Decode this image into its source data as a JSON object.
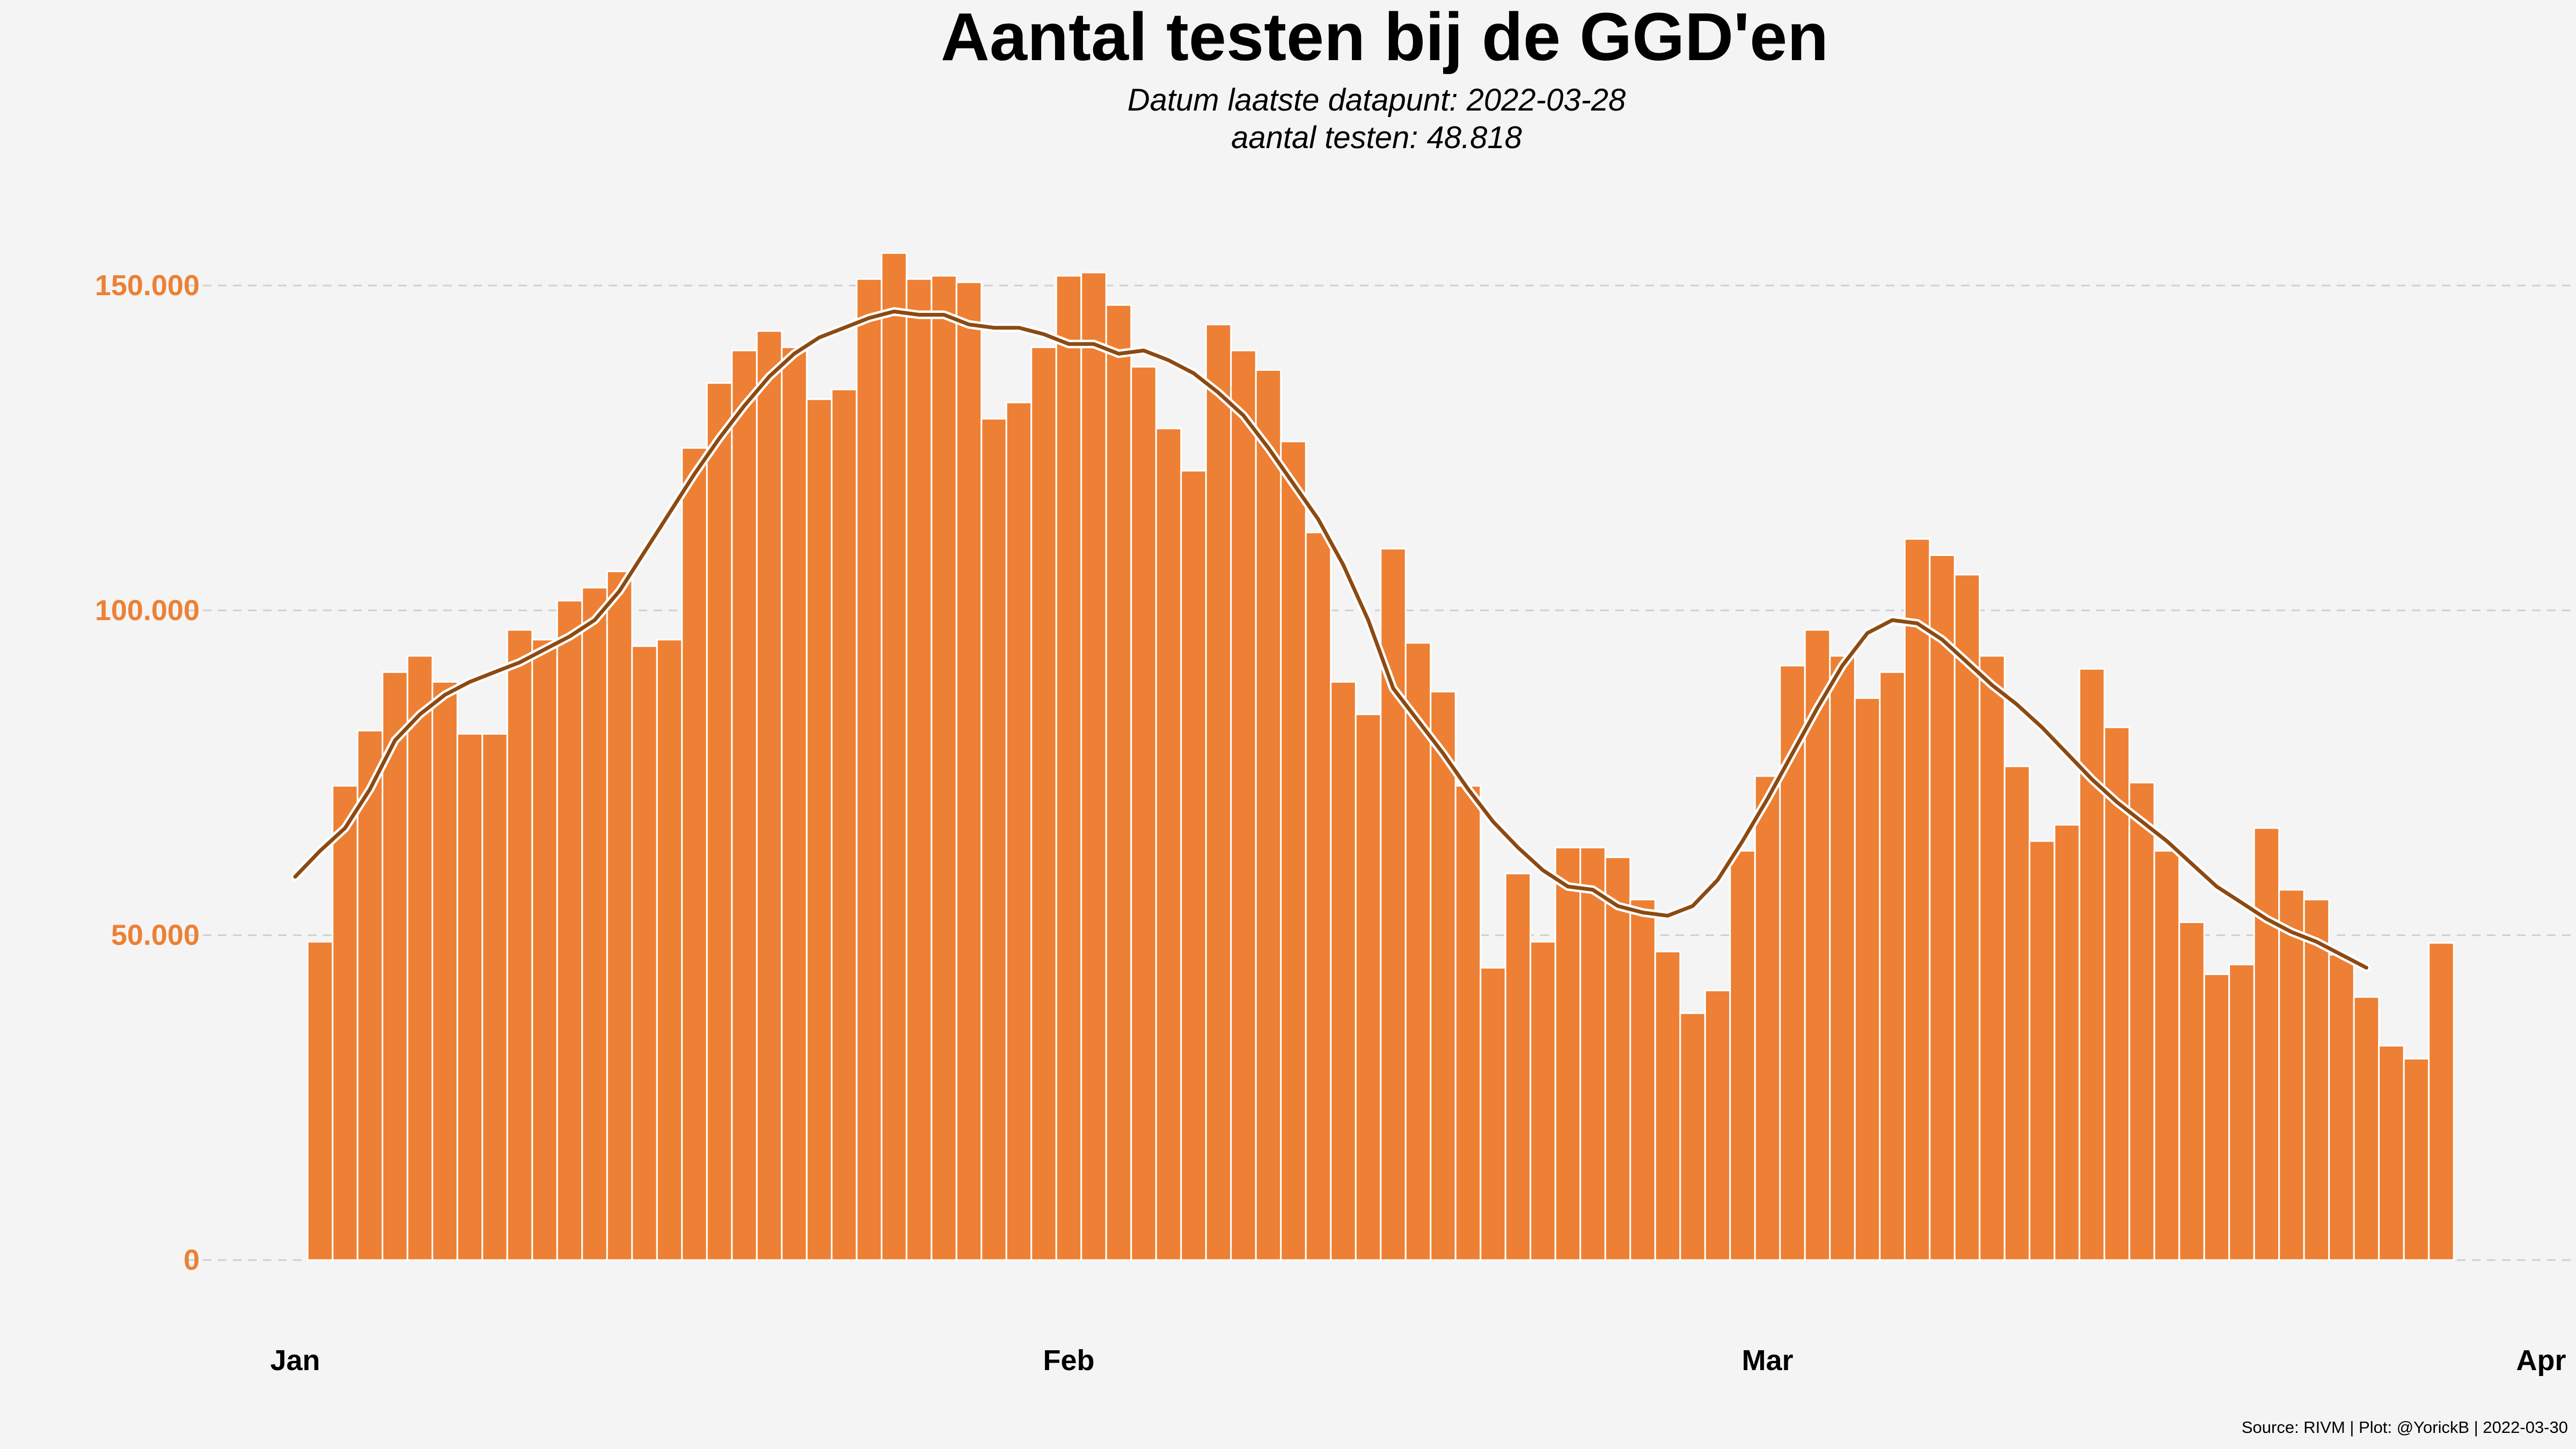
{
  "colors": {
    "background": "#f4f4f4",
    "bar": "#ed8034",
    "bar_stroke": "#ffffff",
    "trend": "#8c4a12",
    "trend_halo": "#ffffff",
    "ytick": "#ed8034",
    "grid": "#cfcfcf"
  },
  "chart_data": {
    "type": "bar",
    "title": "Aantal testen bij de GGD'en",
    "subtitle_line1": "Datum laatste datapunt: 2022-03-28",
    "subtitle_line2": "aantal testen: 48.818",
    "caption": "Source: RIVM | Plot: @YorickB |  2022-03-30",
    "xlabel": "",
    "ylabel": "",
    "x_start": "2022-01-01",
    "x_end": "2022-04-01",
    "ylim": [
      -3500,
      165000
    ],
    "grid": "horizontal dashed",
    "legend": "none",
    "y_ticks": [
      {
        "value": 0,
        "label": "0"
      },
      {
        "value": 50000,
        "label": "50.000"
      },
      {
        "value": 100000,
        "label": "100.000"
      },
      {
        "value": 150000,
        "label": "150.000"
      }
    ],
    "x_ticks": [
      {
        "date": "2022-01-01",
        "label": "Jan"
      },
      {
        "date": "2022-02-01",
        "label": "Feb"
      },
      {
        "date": "2022-03-01",
        "label": "Mar"
      },
      {
        "date": "2022-04-01",
        "label": "Apr"
      }
    ],
    "bars": {
      "name": "aantal testen",
      "first_date": "2022-01-02",
      "last_date": "2022-03-28",
      "values": [
        49000,
        73000,
        81500,
        90500,
        93000,
        89000,
        81000,
        81000,
        97000,
        95500,
        101500,
        103500,
        106000,
        94500,
        95500,
        125000,
        135000,
        140000,
        143000,
        140500,
        132500,
        134000,
        151000,
        155000,
        151000,
        151500,
        150500,
        129500,
        132000,
        140500,
        151500,
        152000,
        147000,
        137500,
        128000,
        121500,
        144000,
        140000,
        137000,
        126000,
        112000,
        89000,
        84000,
        109500,
        95000,
        87500,
        73000,
        45000,
        59500,
        49000,
        63500,
        63500,
        62000,
        55500,
        47500,
        38000,
        41500,
        63000,
        74500,
        91500,
        97000,
        93000,
        86500,
        90500,
        111000,
        108500,
        105500,
        93000,
        76000,
        64500,
        67000,
        91000,
        82000,
        73500,
        63000,
        52000,
        44000,
        45500,
        66500,
        57000,
        55500,
        47000,
        40500,
        33000,
        31000,
        48818
      ]
    },
    "series": [
      {
        "name": "",
        "type": "line",
        "first_date": "2022-01-01",
        "values": [
          59000,
          63000,
          66500,
          72500,
          80000,
          84000,
          87000,
          89000,
          90500,
          92000,
          94000,
          96000,
          98500,
          103000,
          109000,
          115000,
          121000,
          126500,
          131500,
          136000,
          139500,
          142000,
          143500,
          145000,
          146000,
          145500,
          145500,
          144000,
          143500,
          143500,
          142500,
          141000,
          141000,
          139500,
          140000,
          138500,
          136500,
          133500,
          130000,
          125000,
          119500,
          114000,
          107000,
          98500,
          88000,
          83000,
          78000,
          72500,
          67500,
          63500,
          60000,
          57500,
          57000,
          54500,
          53500,
          53000,
          54500,
          58500,
          64500,
          71000,
          78000,
          85000,
          91500,
          96500,
          98500,
          98000,
          95500,
          92000,
          88500,
          85500,
          82000,
          78000,
          74000,
          70500,
          67500,
          64500,
          61000,
          57500,
          55000,
          52500,
          50500,
          49000,
          47000,
          45000
        ]
      }
    ]
  }
}
